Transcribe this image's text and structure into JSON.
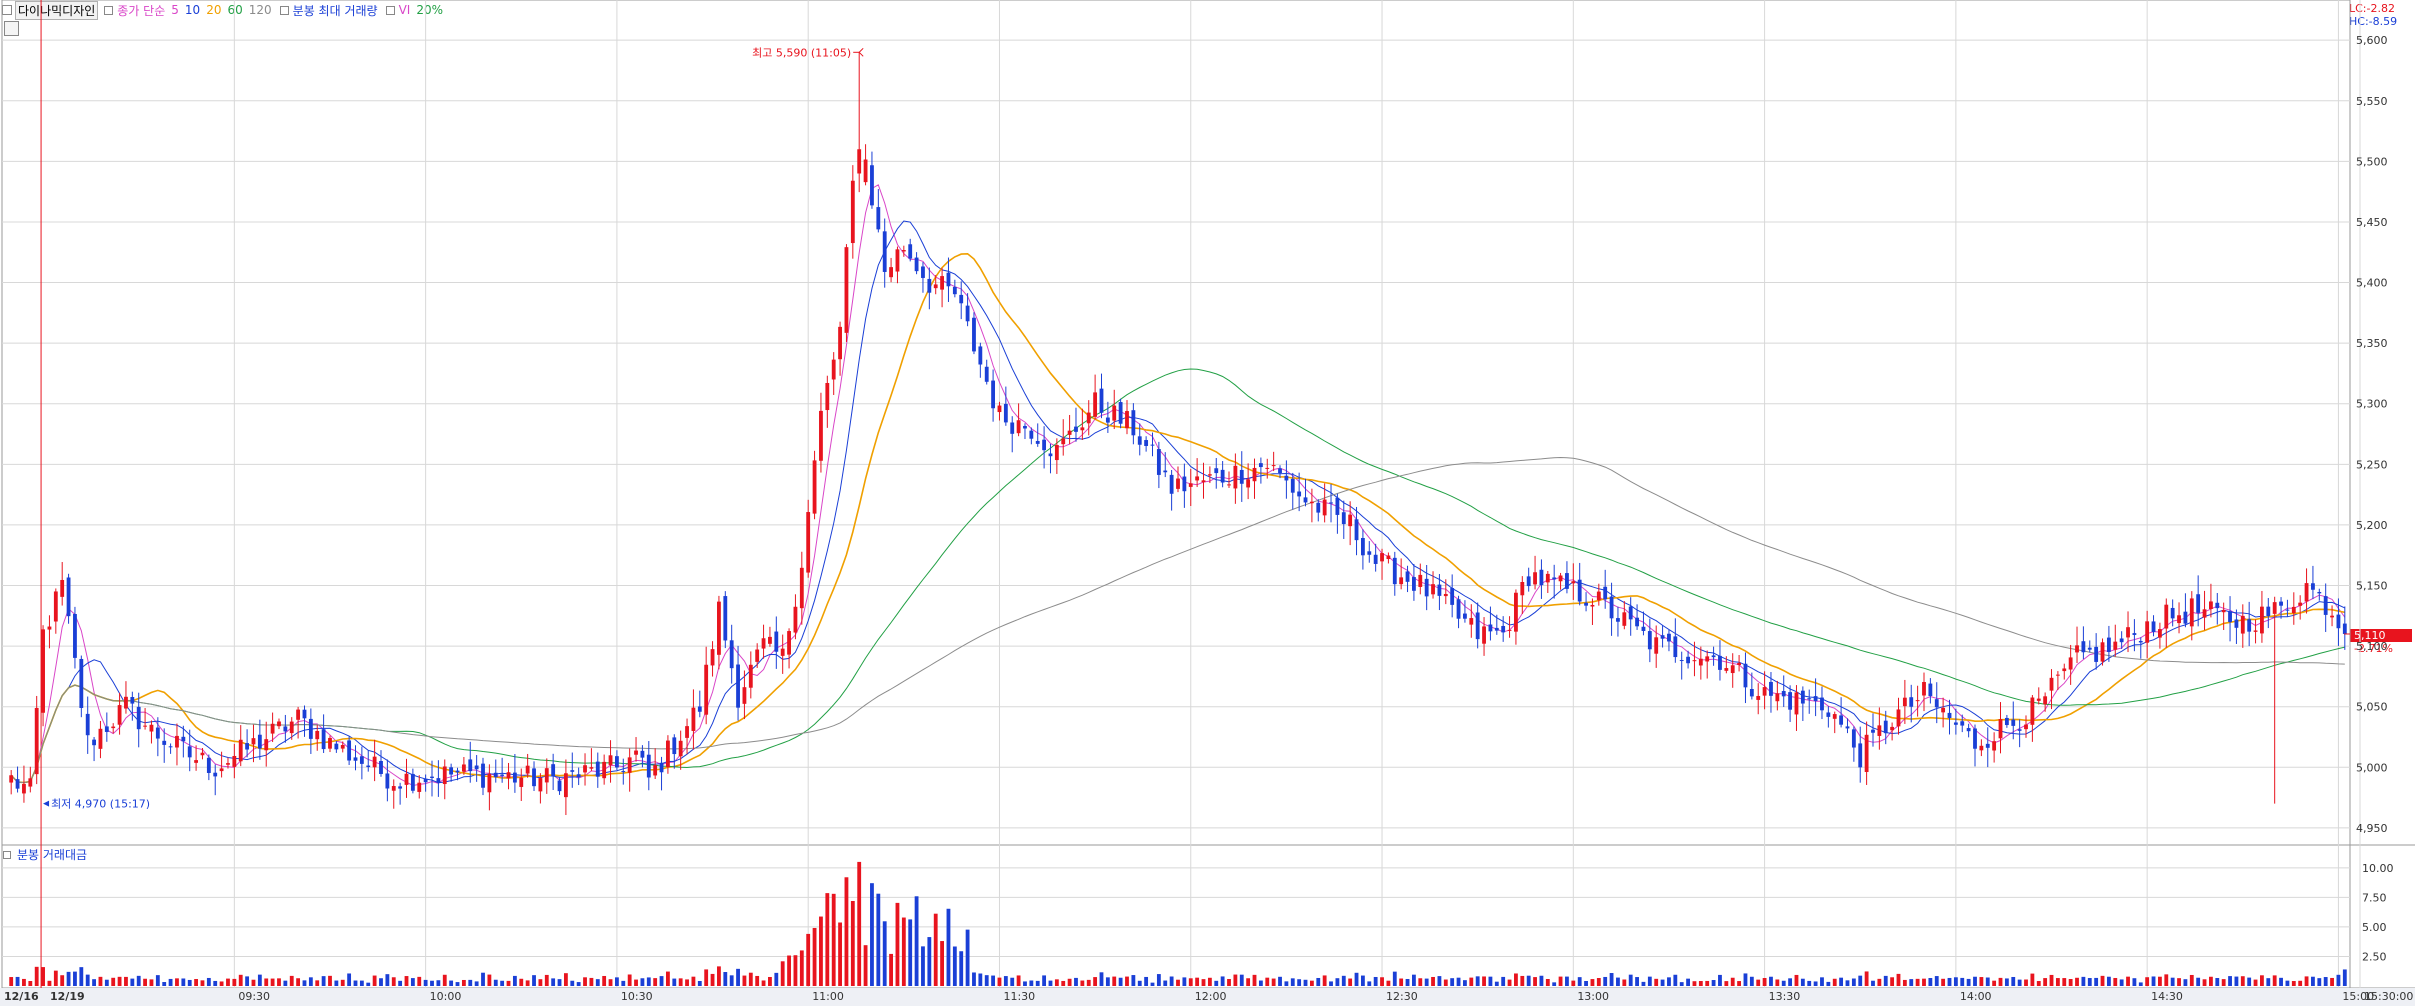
{
  "header": {
    "stock_name": "다이나믹디자인",
    "ma_label": "종가 단순",
    "ma_periods": [
      "5",
      "10",
      "20",
      "60",
      "120"
    ],
    "vol_label": "분봉 최대 거래량",
    "vi_label": "VI",
    "vi_value": "20%"
  },
  "indicators": {
    "lc": "LC:-2.82",
    "hc": "HC:-8.59"
  },
  "colors": {
    "up": "#e8141e",
    "down": "#1a3fd6",
    "ma5": "#d946c8",
    "ma10": "#1a3fd6",
    "ma20": "#f0a000",
    "ma60": "#22a045",
    "ma120": "#8c8c8c",
    "grid": "#d8d8d8",
    "price_tag": "#e8141e"
  },
  "annotations": {
    "high_label": "최고 5,590 (11:05)",
    "low_label": "최저 4,970 (15:17)",
    "last_price": "5,110",
    "last_change": "-2.71%"
  },
  "volume_panel": {
    "title": "분봉 거래대금"
  },
  "dates": [
    "12/16",
    "12/19"
  ],
  "chart_data": [
    {
      "type": "candlestick",
      "xlabels": [
        "09:30",
        "10:00",
        "10:30",
        "11:00",
        "11:30",
        "12:00",
        "12:30",
        "13:00",
        "13:30",
        "14:00",
        "14:30",
        "15:00",
        "15:30:00"
      ],
      "ylim": [
        4940,
        5615
      ],
      "yticks": [
        "5,600",
        "5,550",
        "5,500",
        "5,450",
        "5,400",
        "5,350",
        "5,300",
        "5,250",
        "5,200",
        "5,150",
        "5,100",
        "5,050",
        "5,000",
        "4,950"
      ],
      "anchors_close": [
        [
          0,
          4990
        ],
        [
          3,
          4980
        ],
        [
          5,
          5110
        ],
        [
          8,
          5150
        ],
        [
          12,
          5020
        ],
        [
          18,
          5050
        ],
        [
          22,
          5030
        ],
        [
          28,
          5010
        ],
        [
          32,
          5000
        ],
        [
          45,
          5040
        ],
        [
          50,
          5020
        ],
        [
          60,
          4990
        ],
        [
          70,
          4995
        ],
        [
          85,
          4990
        ],
        [
          95,
          5000
        ],
        [
          98,
          5010
        ],
        [
          100,
          4990
        ],
        [
          108,
          5050
        ],
        [
          111,
          5130
        ],
        [
          114,
          5060
        ],
        [
          118,
          5100
        ],
        [
          121,
          5090
        ],
        [
          124,
          5170
        ],
        [
          127,
          5290
        ],
        [
          130,
          5360
        ],
        [
          132,
          5480
        ],
        [
          134,
          5500
        ],
        [
          137,
          5410
        ],
        [
          140,
          5430
        ],
        [
          144,
          5400
        ],
        [
          148,
          5390
        ],
        [
          155,
          5290
        ],
        [
          160,
          5280
        ],
        [
          164,
          5260
        ],
        [
          170,
          5300
        ],
        [
          176,
          5280
        ],
        [
          182,
          5230
        ],
        [
          190,
          5240
        ],
        [
          197,
          5250
        ],
        [
          203,
          5220
        ],
        [
          210,
          5200
        ],
        [
          214,
          5170
        ],
        [
          221,
          5150
        ],
        [
          230,
          5110
        ],
        [
          234,
          5110
        ],
        [
          238,
          5160
        ],
        [
          242,
          5150
        ],
        [
          248,
          5140
        ],
        [
          258,
          5100
        ],
        [
          268,
          5090
        ],
        [
          275,
          5060
        ],
        [
          285,
          5050
        ],
        [
          290,
          5010
        ],
        [
          295,
          5040
        ],
        [
          300,
          5060
        ],
        [
          308,
          5020
        ],
        [
          318,
          5050
        ],
        [
          324,
          5090
        ],
        [
          330,
          5100
        ],
        [
          336,
          5120
        ],
        [
          342,
          5130
        ],
        [
          350,
          5120
        ],
        [
          356,
          5130
        ],
        [
          360,
          5150
        ],
        [
          364,
          5130
        ],
        [
          366,
          5110
        ]
      ],
      "high": {
        "value": 5590,
        "time": "11:05"
      },
      "low": {
        "value": 4970,
        "time": "15:17"
      },
      "last": 5110
    },
    {
      "type": "bar",
      "series": "분봉 거래대금",
      "ylim": [
        0,
        11
      ],
      "yticks": [
        "10.00",
        "7.50",
        "5.00",
        "2.50"
      ]
    }
  ]
}
